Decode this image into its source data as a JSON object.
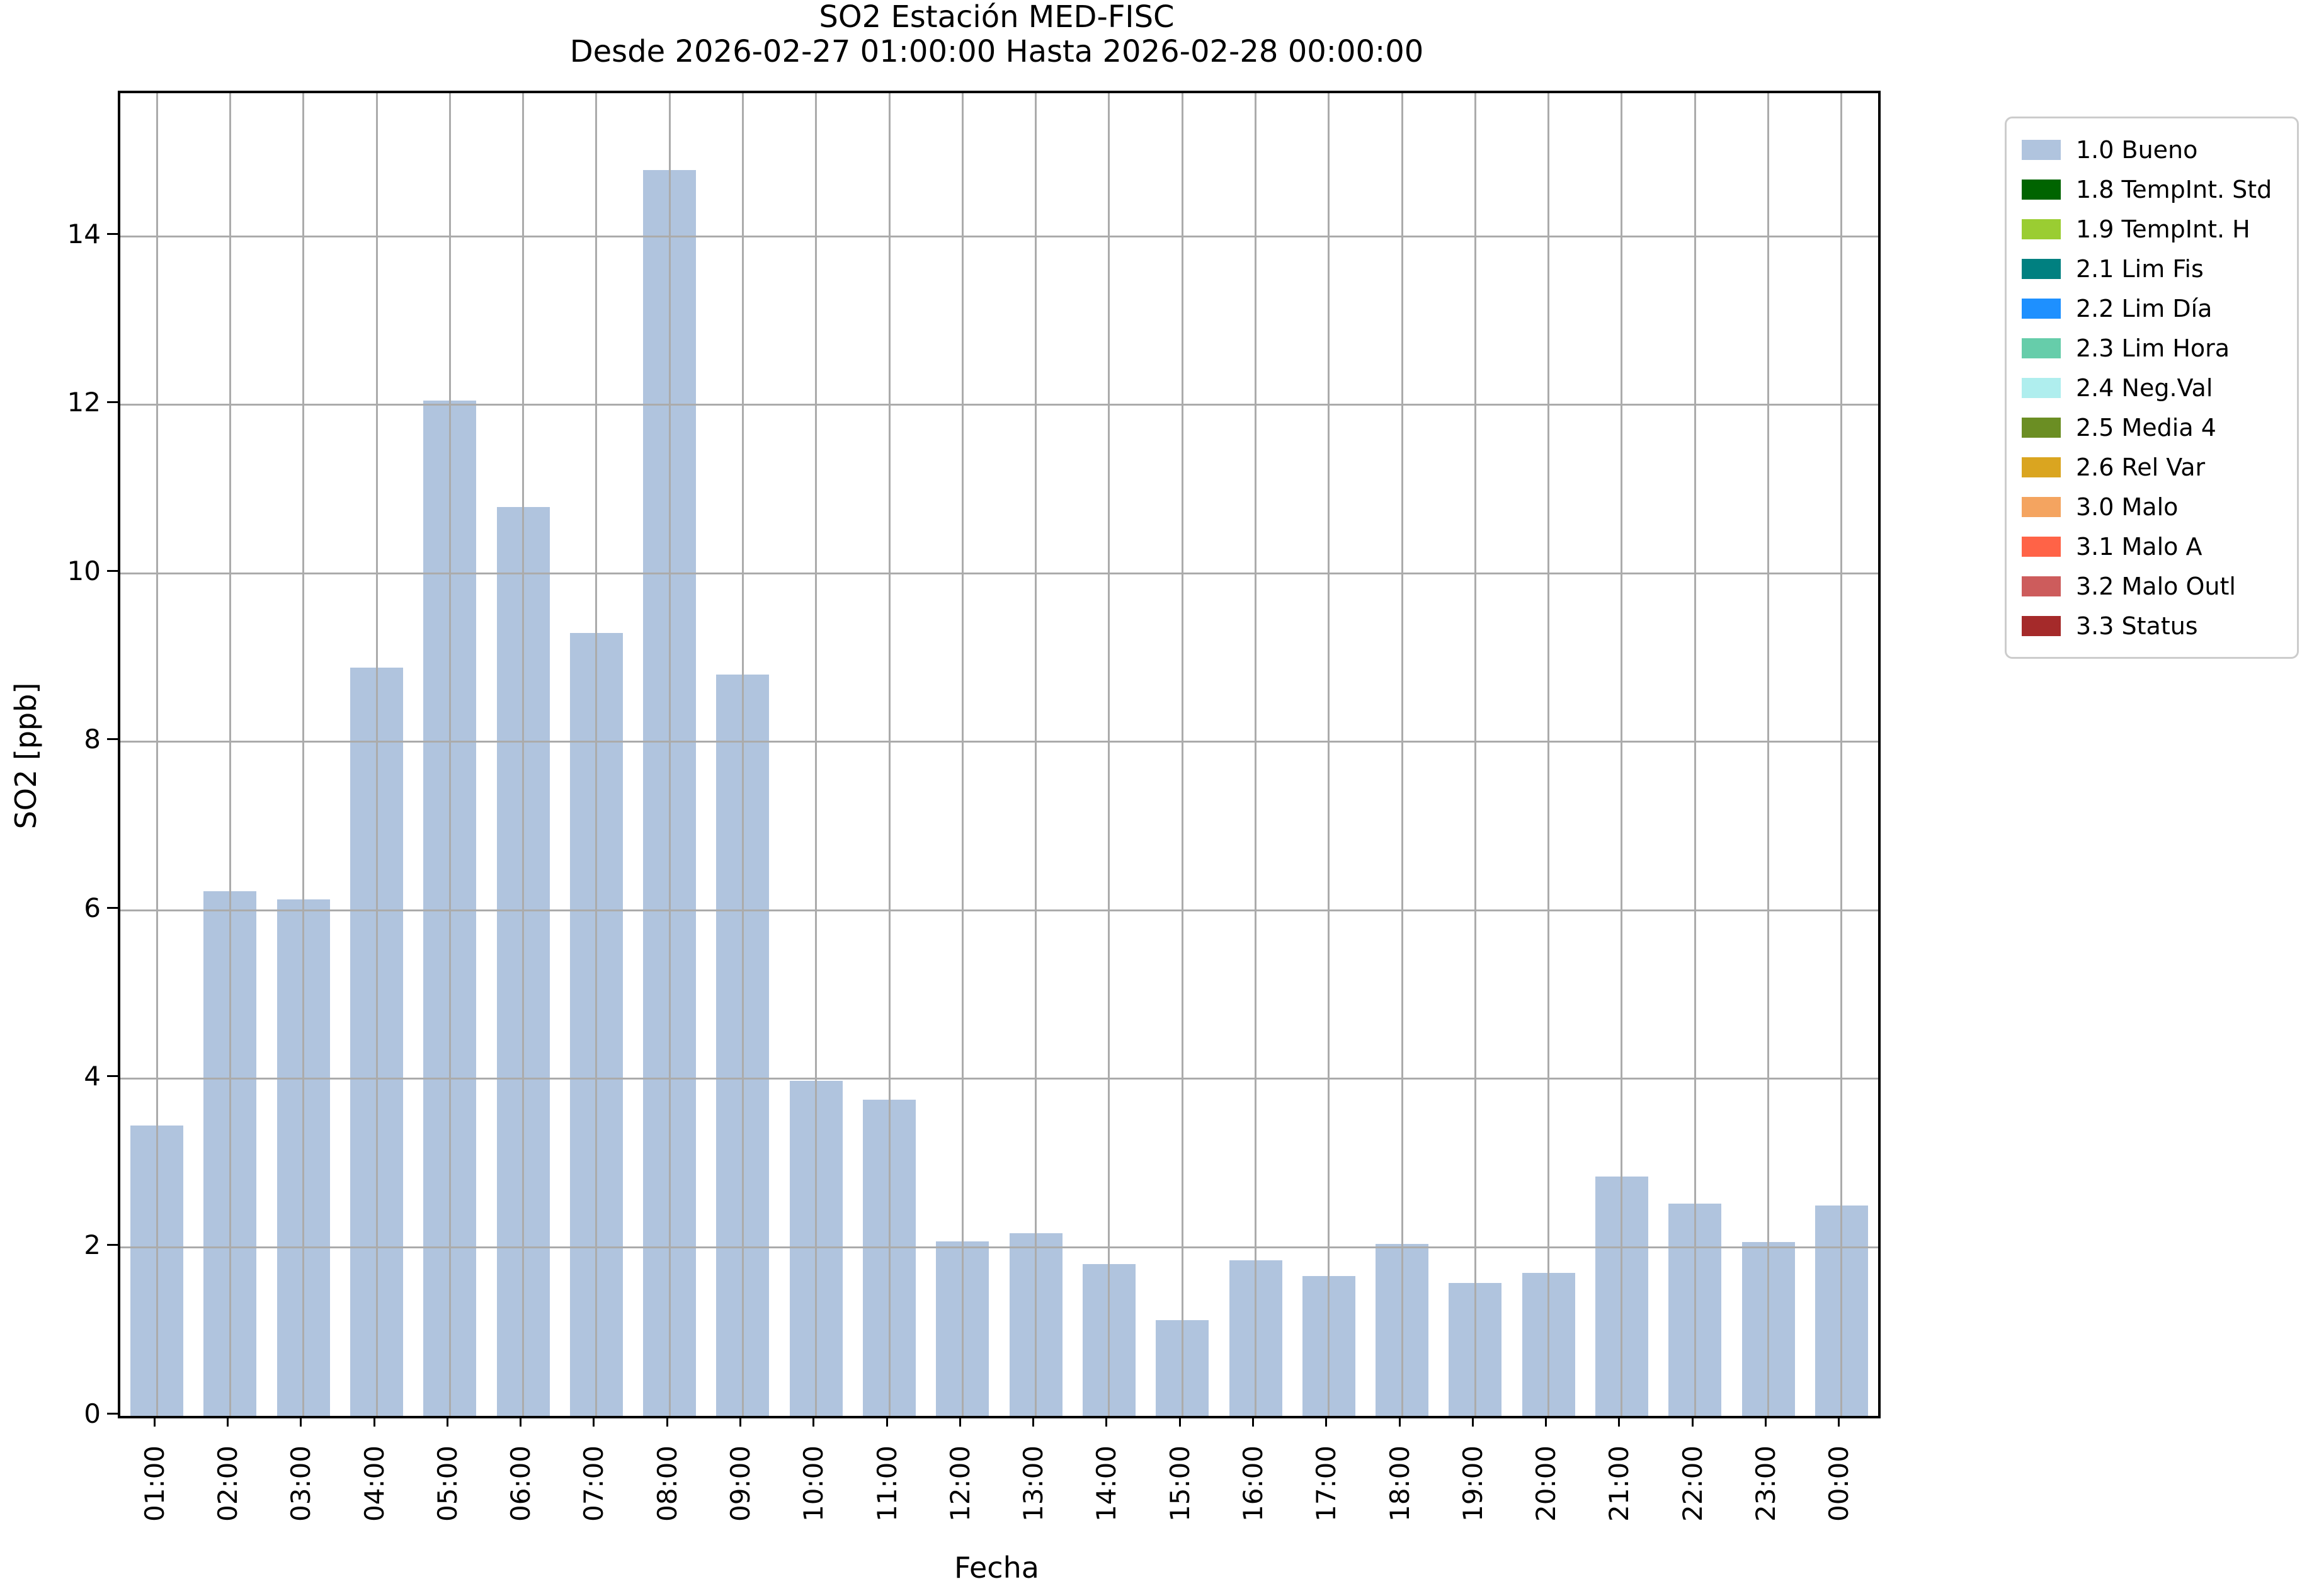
{
  "title": "SO2 Estación MED-FISC",
  "subtitle": "Desde 2026-02-27 01:00:00 Hasta 2026-02-28 00:00:00",
  "chart_data": {
    "type": "bar",
    "title": "SO2 Estación MED-FISC",
    "subtitle": "Desde 2026-02-27 01:00:00 Hasta 2026-02-28 00:00:00",
    "xlabel": "Fecha",
    "ylabel": "SO2 [ppb]",
    "categories": [
      "01:00",
      "02:00",
      "03:00",
      "04:00",
      "05:00",
      "06:00",
      "07:00",
      "08:00",
      "09:00",
      "10:00",
      "11:00",
      "12:00",
      "13:00",
      "14:00",
      "15:00",
      "16:00",
      "17:00",
      "18:00",
      "19:00",
      "20:00",
      "21:00",
      "22:00",
      "23:00",
      "00:00"
    ],
    "values": [
      3.45,
      6.23,
      6.13,
      8.88,
      12.05,
      10.79,
      9.29,
      14.79,
      8.8,
      3.98,
      3.75,
      2.07,
      2.17,
      1.8,
      1.14,
      1.85,
      1.66,
      2.04,
      1.58,
      1.7,
      2.84,
      2.52,
      2.06,
      2.5
    ],
    "ylim": [
      0,
      15.7
    ],
    "yticks": [
      0,
      2,
      4,
      6,
      8,
      10,
      12,
      14
    ],
    "grid": true,
    "grid_color": "#ababab",
    "bar_color": "#b0c4de",
    "series_name": "1.0 Bueno",
    "legend_position": "outside-upper-right",
    "legend_entries": [
      {
        "label": "1.0 Bueno",
        "color": "#b0c4de"
      },
      {
        "label": "1.8 TempInt. Std",
        "color": "#006400"
      },
      {
        "label": "1.9 TempInt. H",
        "color": "#9acd32"
      },
      {
        "label": "2.1 Lim Fis",
        "color": "#008080"
      },
      {
        "label": "2.2 Lim Día",
        "color": "#1e90ff"
      },
      {
        "label": "2.3 Lim Hora",
        "color": "#66cdaa"
      },
      {
        "label": "2.4 Neg.Val",
        "color": "#afeeee"
      },
      {
        "label": "2.5 Media 4",
        "color": "#6b8e23"
      },
      {
        "label": "2.6 Rel Var",
        "color": "#daa520"
      },
      {
        "label": "3.0 Malo",
        "color": "#f4a460"
      },
      {
        "label": "3.1 Malo A",
        "color": "#ff6347"
      },
      {
        "label": "3.2 Malo Outl",
        "color": "#cd5c5c"
      },
      {
        "label": "3.3 Status",
        "color": "#a52a2a"
      }
    ]
  }
}
